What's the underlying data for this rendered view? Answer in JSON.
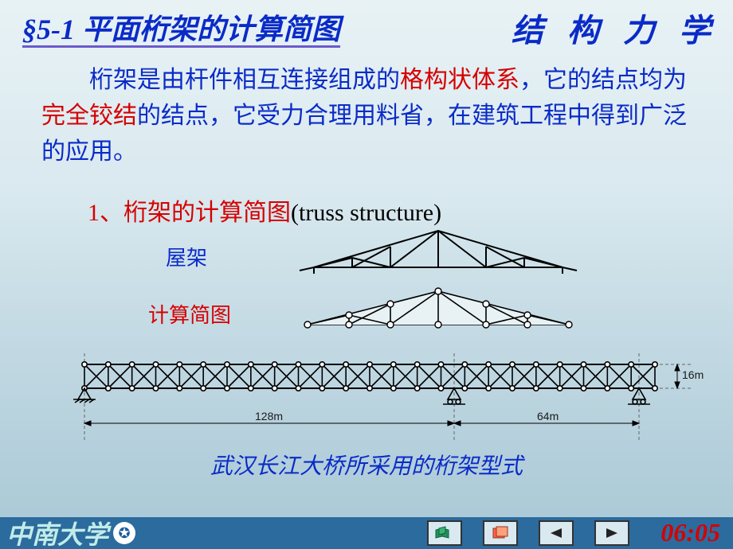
{
  "header": {
    "section": "§5-1  平面桁架的计算简图",
    "subject": "结 构 力 学"
  },
  "paragraph": {
    "t1": "　　桁架是由杆件相互连接组成的",
    "red1": "格构状体系",
    "t2": "，它的结点均为",
    "red2": "完全铰结",
    "t3": "的结点，它受力合理用料省，在建筑工程中得到广泛的应用。"
  },
  "sub": {
    "head_red": "1、桁架的计算简图",
    "head_blk": "(truss structure)",
    "roof_label": "屋架",
    "calc_label": "计算简图"
  },
  "bridge": {
    "caption": "武汉长江大桥所采用的桁架型式",
    "dim_left": "128m",
    "dim_right": "64m",
    "dim_h": "16m"
  },
  "footer": {
    "university": "中南大学",
    "time": "06:05"
  },
  "colors": {
    "blue": "#0a2bc7",
    "red": "#d60000",
    "footer_bg": "#2b6b9e"
  }
}
